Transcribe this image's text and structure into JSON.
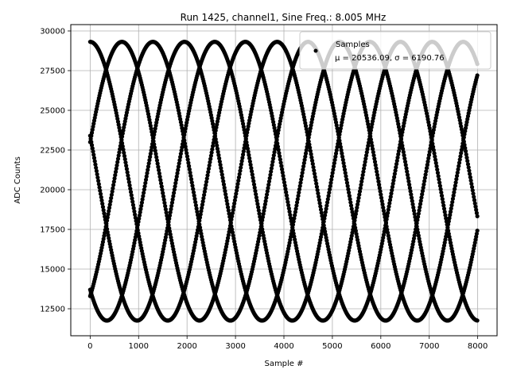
{
  "chart_data": {
    "type": "scatter",
    "title": "Run 1425, channel1, Sine Freq.: 8.005 MHz",
    "xlabel": "Sample #",
    "ylabel": "ADC Counts",
    "xlim": [
      -400,
      8400
    ],
    "ylim": [
      10800,
      30400
    ],
    "xticks": [
      0,
      1000,
      2000,
      3000,
      4000,
      5000,
      6000,
      7000,
      8000
    ],
    "yticks": [
      12500,
      15000,
      17500,
      20000,
      22500,
      25000,
      27500,
      30000
    ],
    "grid": true,
    "legend": {
      "placement": "top-right",
      "entries": [
        "Samples",
        "μ = 20536.09, σ = 6190.76"
      ]
    },
    "series": [
      {
        "name": "Samples",
        "color": "#000000",
        "signal": {
          "offset": 20536.09,
          "amplitude": 8780,
          "period_samples": 3203,
          "phase_starts": [
            {
              "x": 0,
              "y": 29350
            },
            {
              "x": 0,
              "y": 23400
            },
            {
              "x": 0,
              "y": 23000
            },
            {
              "x": 0,
              "y": 13700
            },
            {
              "x": 0,
              "y": 13300
            }
          ],
          "step": 12
        }
      }
    ]
  }
}
